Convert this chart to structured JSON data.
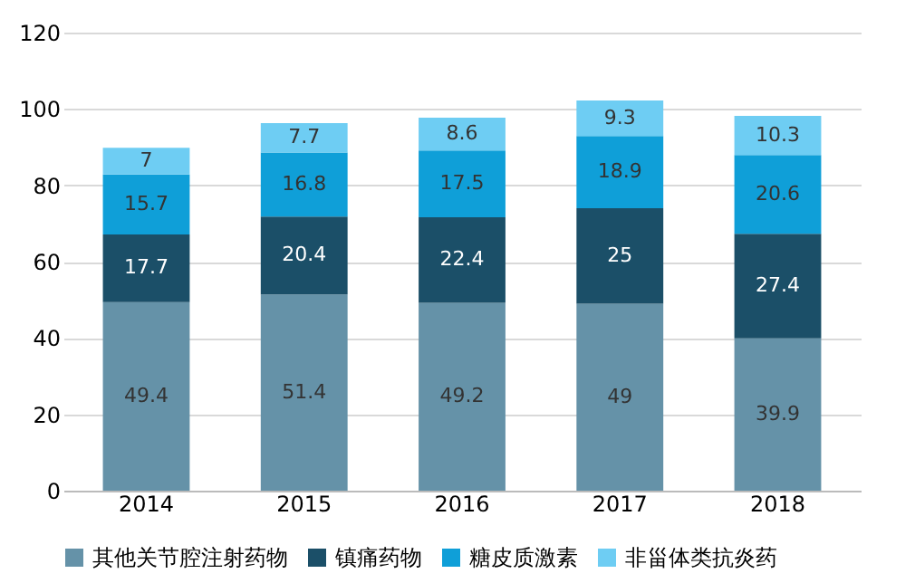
{
  "chart_data": {
    "type": "bar",
    "stacked": true,
    "categories": [
      "2014",
      "2015",
      "2016",
      "2017",
      "2018"
    ],
    "series": [
      {
        "name": "其他关节腔注射药物",
        "color": "#6592a8",
        "values": [
          49.4,
          51.4,
          49.2,
          49,
          39.9
        ]
      },
      {
        "name": "镇痛药物",
        "color": "#1b4f68",
        "values": [
          17.7,
          20.4,
          22.4,
          25,
          27.4
        ]
      },
      {
        "name": "糖皮质激素",
        "color": "#0f9fd8",
        "values": [
          15.7,
          16.8,
          17.5,
          18.9,
          20.6
        ]
      },
      {
        "name": "非甾体类抗炎药",
        "color": "#6ecdf3",
        "values": [
          7,
          7.7,
          8.6,
          9.3,
          10.3
        ]
      }
    ],
    "ylim": [
      0,
      120
    ],
    "yticks": [
      0,
      20,
      40,
      60,
      80,
      100,
      120
    ],
    "grid": "y",
    "legend": "bottom",
    "data_labels": true
  }
}
